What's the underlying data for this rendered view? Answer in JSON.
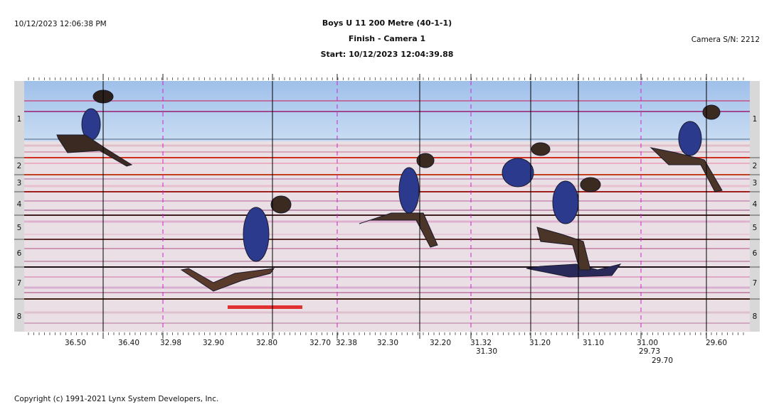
{
  "header": {
    "datetime": "10/12/2023 12:06:38 PM",
    "title": "Boys U 11 200 Metre (40-1-1)",
    "subtitle": "Finish - Camera 1",
    "start": "Start: 10/12/2023 12:04:39.88",
    "camera": "Camera S/N: 2212"
  },
  "lanes": [
    "1",
    "2",
    "3",
    "4",
    "5",
    "6",
    "7",
    "8"
  ],
  "time_labels": [
    "36.50",
    "36.40",
    "32.98",
    "32.90",
    "32.80",
    "32.70",
    "32.38",
    "32.30",
    "32.20",
    "31.32",
    "31.30",
    "31.20",
    "31.10",
    "31.00",
    "29.73",
    "29.70",
    "29.60"
  ],
  "footer": "Copyright (c) 1991-2021 Lynx System Developers, Inc."
}
